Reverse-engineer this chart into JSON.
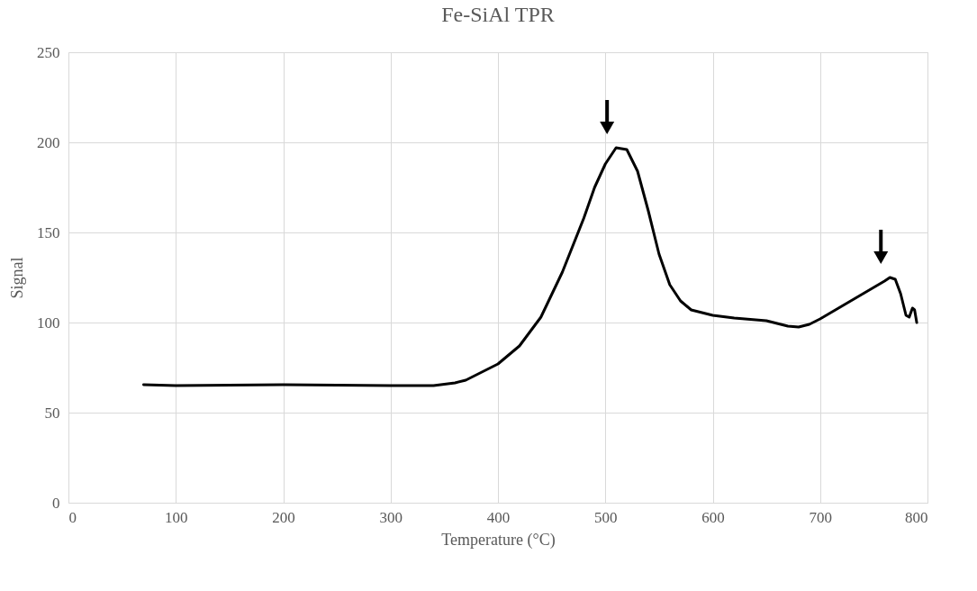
{
  "chart_data": {
    "type": "line",
    "title": "Fe-SiAl TPR",
    "xlabel": "Temperature (°C)",
    "ylabel": "Signal",
    "x": [
      70,
      100,
      200,
      300,
      340,
      360,
      370,
      400,
      420,
      440,
      460,
      480,
      490,
      500,
      510,
      520,
      530,
      540,
      550,
      560,
      570,
      580,
      600,
      620,
      650,
      670,
      680,
      690,
      700,
      720,
      740,
      760,
      765,
      770,
      775,
      780,
      783,
      786,
      788,
      790
    ],
    "series": [
      {
        "color": "#000000",
        "values": [
          65.5,
          65,
          65.5,
          65,
          65,
          66.5,
          68,
          77,
          87,
          103,
          128,
          158,
          175,
          188,
          197,
          196,
          184,
          162,
          138,
          121,
          112,
          107,
          104,
          102.5,
          101,
          98,
          97.5,
          99,
          102,
          109,
          116,
          123,
          125,
          124,
          116,
          104,
          103,
          108,
          107,
          100
        ]
      }
    ],
    "xlim": [
      0,
      800
    ],
    "xticks": [
      0,
      100,
      200,
      300,
      400,
      500,
      600,
      700,
      800
    ],
    "ylim": [
      0,
      250
    ],
    "yticks": [
      0,
      50,
      100,
      150,
      200,
      250
    ],
    "grid": true,
    "line_style": "solid"
  }
}
